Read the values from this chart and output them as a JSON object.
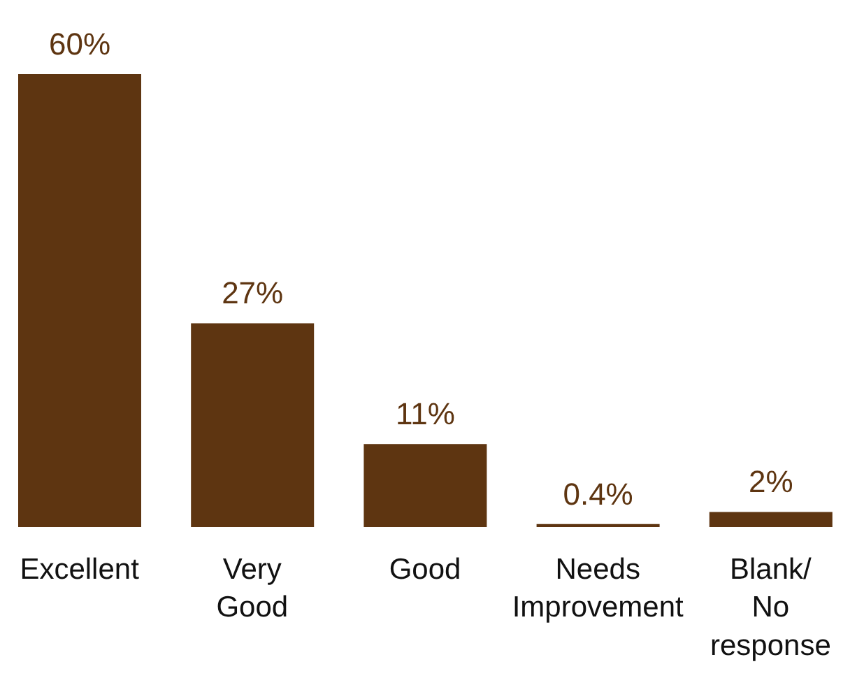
{
  "chart_data": {
    "type": "bar",
    "categories": [
      "Excellent",
      "Very Good",
      "Good",
      "Needs Improvement",
      "Blank/ No response"
    ],
    "values": [
      60,
      27,
      11,
      0.4,
      2
    ],
    "value_labels": [
      "60%",
      "27%",
      "11%",
      "0.4%",
      "2%"
    ],
    "color": "#5e3511"
  }
}
